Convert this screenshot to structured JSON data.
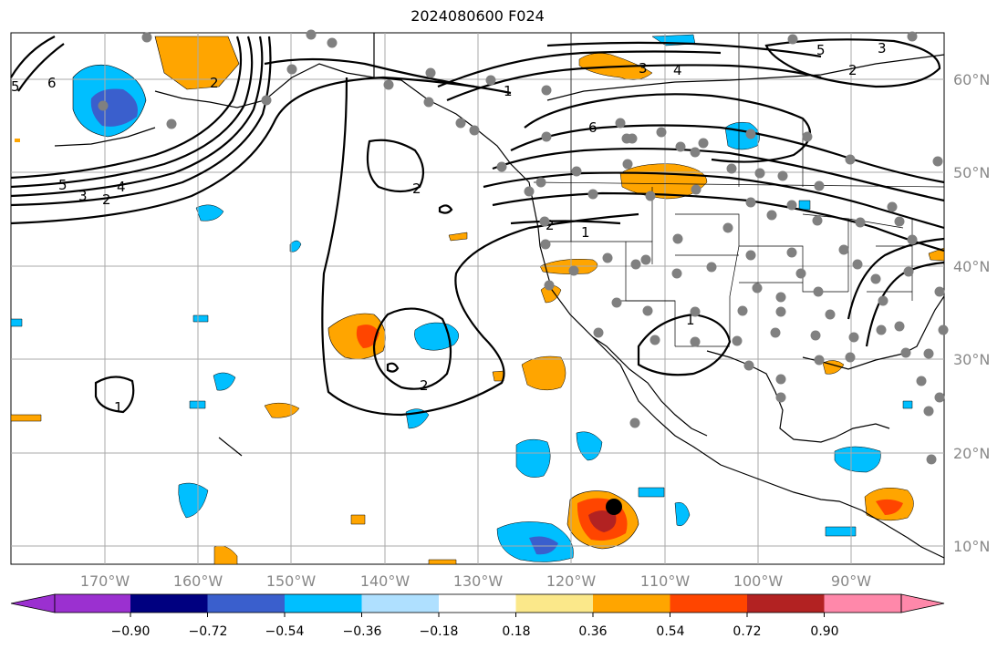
{
  "title": "2024080600 F024",
  "map": {
    "lat_labels": [
      "60°N",
      "50°N",
      "40°N",
      "30°N",
      "20°N",
      "10°N"
    ],
    "lon_labels": [
      "170°W",
      "160°W",
      "150°W",
      "140°W",
      "130°W",
      "120°W",
      "110°W",
      "100°W",
      "90°W"
    ],
    "contour_labels": [
      "5",
      "6",
      "5",
      "4",
      "3",
      "2",
      "1",
      "2",
      "6",
      "1",
      "3",
      "4",
      "2",
      "5",
      "3",
      "2",
      "1",
      "2",
      "1",
      "2"
    ]
  },
  "colorbar": {
    "ticks": [
      "−0.90",
      "−0.72",
      "−0.54",
      "−0.36",
      "−0.18",
      "0.18",
      "0.36",
      "0.54",
      "0.72",
      "0.90"
    ],
    "colors": [
      "#9b30d0",
      "#000080",
      "#3a5fcd",
      "#00bfff",
      "#afe0ff",
      "#ffffff",
      "#fbe88a",
      "#ffa500",
      "#ff4500",
      "#b22222",
      "#ff88aa"
    ]
  }
}
